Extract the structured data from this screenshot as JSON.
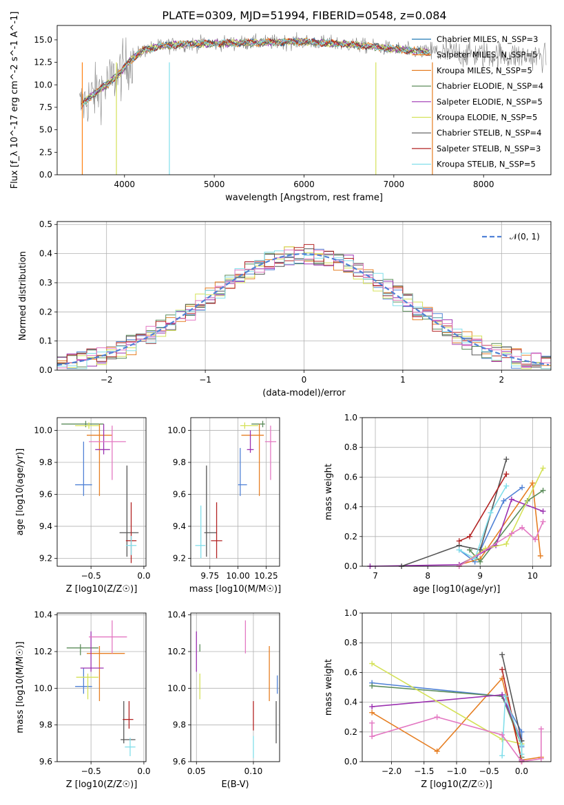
{
  "title": "PLATE=0309, MJD=51994, FIBERID=0548, z=0.084",
  "chart_data": [
    {
      "id": "spectrum",
      "type": "line",
      "xlabel": "wavelength [Angstrom, rest frame]",
      "ylabel": "Flux [f_λ 10^-17 erg cm^-2 s^-1 A^-1]",
      "xlim": [
        3250,
        8750
      ],
      "ylim": [
        0,
        16.6
      ],
      "xticks": [
        4000,
        5000,
        6000,
        7000,
        8000
      ],
      "yticks": [
        0.0,
        2.5,
        5.0,
        7.5,
        10.0,
        12.5,
        15.0
      ],
      "grid": false,
      "legend_placement": "right",
      "continuum_x": [
        3500,
        3600,
        3800,
        3950,
        4050,
        4200,
        4400,
        4600,
        5000,
        5500,
        6000,
        6500,
        7000,
        7400
      ],
      "continuum_y": [
        7.5,
        8.5,
        10.0,
        11.3,
        12.6,
        13.8,
        14.3,
        14.5,
        14.6,
        14.7,
        14.8,
        14.5,
        14.0,
        13.6
      ],
      "series": [
        {
          "name": "Chabrier MILES, N_SSP=3",
          "color": "#1f77b4"
        },
        {
          "name": "Salpeter MILES, N_SSP=5",
          "color": "#ff7f0e"
        },
        {
          "name": "Kroupa MILES, N_SSP=5",
          "color": "#e67e22"
        },
        {
          "name": "Chabrier ELODIE, N_SSP=4",
          "color": "#5b8c5a"
        },
        {
          "name": "Salpeter ELODIE, N_SSP=5",
          "color": "#9b30b0"
        },
        {
          "name": "Kroupa ELODIE, N_SSP=5",
          "color": "#d4e157"
        },
        {
          "name": "Chabrier STELIB, N_SSP=4",
          "color": "#555555"
        },
        {
          "name": "Salpeter STELIB, N_SSP=3",
          "color": "#b22222"
        },
        {
          "name": "Kroupa STELIB, N_SSP=5",
          "color": "#80deea"
        }
      ]
    },
    {
      "id": "residuals",
      "type": "step",
      "xlabel": "(data-model)/error",
      "ylabel": "Normed distribution",
      "xlim": [
        -2.5,
        2.5
      ],
      "ylim": [
        0,
        0.51
      ],
      "xticks": [
        -2,
        -1,
        0,
        1,
        2
      ],
      "xtick_labels": [
        "−2",
        "−1",
        "0",
        "1",
        "2"
      ],
      "yticks": [
        0.0,
        0.1,
        0.2,
        0.3,
        0.4,
        0.5
      ],
      "grid": true,
      "legend_placement": "top-right",
      "legend_label": "𝒩(0, 1)",
      "bin_width": 0.1,
      "series_colors": [
        "#4f81d6",
        "#e67e22",
        "#5b8c5a",
        "#9b30b0",
        "#d4e157",
        "#555555",
        "#b22222",
        "#80deea",
        "#e377c2"
      ]
    },
    {
      "id": "age_vs_Z",
      "type": "errorbar",
      "xlabel": "Z [log10(Z/Z☉)]",
      "ylabel": "age [log10(age/yr)]",
      "xlim": [
        -0.82,
        0.02
      ],
      "ylim": [
        9.15,
        10.08
      ],
      "xticks": [
        -0.5,
        0.0
      ],
      "xtick_labels": [
        "−0.5",
        "0.0"
      ],
      "yticks": [
        9.2,
        9.4,
        9.6,
        9.8,
        10.0
      ],
      "grid": true,
      "points": [
        {
          "x": -0.57,
          "y": 9.66,
          "xerr": [
            0.08,
            0.08
          ],
          "yerr": [
            0.07,
            0.27
          ],
          "color": "#4f81d6"
        },
        {
          "x": -0.55,
          "y": 10.04,
          "xerr": [
            0.23,
            0.17
          ],
          "yerr": [
            0.02,
            0.02
          ],
          "color": "#5b8c5a"
        },
        {
          "x": -0.42,
          "y": 9.97,
          "xerr": [
            0.12,
            0.12
          ],
          "yerr": [
            0.38,
            0.07
          ],
          "color": "#e67e22"
        },
        {
          "x": -0.38,
          "y": 9.88,
          "xerr": [
            0.08,
            0.06
          ],
          "yerr": [
            0.03,
            0.16
          ],
          "color": "#9b30b0"
        },
        {
          "x": -0.52,
          "y": 10.03,
          "xerr": [
            0.13,
            0.1
          ],
          "yerr": [
            0.02,
            0.02
          ],
          "color": "#d4e157"
        },
        {
          "x": -0.3,
          "y": 9.93,
          "xerr": [
            0.22,
            0.13
          ],
          "yerr": [
            0.24,
            0.1
          ],
          "color": "#e377c2"
        },
        {
          "x": -0.16,
          "y": 9.36,
          "xerr": [
            0.07,
            0.11
          ],
          "yerr": [
            0.15,
            0.42
          ],
          "color": "#555555"
        },
        {
          "x": -0.12,
          "y": 9.31,
          "xerr": [
            0.05,
            0.05
          ],
          "yerr": [
            0.14,
            0.24
          ],
          "color": "#b22222"
        },
        {
          "x": -0.12,
          "y": 9.28,
          "xerr": [
            0.05,
            0.05
          ],
          "yerr": [
            0.06,
            0.06
          ],
          "color": "#80deea"
        }
      ]
    },
    {
      "id": "age_vs_mass",
      "type": "errorbar",
      "xlabel": "mass [log10(M/M☉)]",
      "ylabel": "",
      "xlim": [
        9.58,
        10.37
      ],
      "ylim": [
        9.15,
        10.08
      ],
      "xticks": [
        9.75,
        10.0,
        10.25
      ],
      "xtick_labels": [
        "9.75",
        "10.00",
        "10.25"
      ],
      "yticks": [
        9.2,
        9.4,
        9.6,
        9.8,
        10.0
      ],
      "grid": true,
      "points": [
        {
          "x": 10.02,
          "y": 9.66,
          "xerr": [
            0.02,
            0.06
          ],
          "yerr": [
            0.07,
            0.23
          ],
          "color": "#4f81d6"
        },
        {
          "x": 10.22,
          "y": 10.04,
          "xerr": [
            0.1,
            0.02
          ],
          "yerr": [
            0.02,
            0.02
          ],
          "color": "#5b8c5a"
        },
        {
          "x": 10.19,
          "y": 9.97,
          "xerr": [
            0.16,
            0.04
          ],
          "yerr": [
            0.38,
            0.07
          ],
          "color": "#e67e22"
        },
        {
          "x": 10.11,
          "y": 9.88,
          "xerr": [
            0.03,
            0.03
          ],
          "yerr": [
            0.02,
            0.12
          ],
          "color": "#9b30b0"
        },
        {
          "x": 10.06,
          "y": 10.03,
          "xerr": [
            0.04,
            0.12
          ],
          "yerr": [
            0.02,
            0.02
          ],
          "color": "#d4e157"
        },
        {
          "x": 10.29,
          "y": 9.93,
          "xerr": [
            0.05,
            0.05
          ],
          "yerr": [
            0.24,
            0.1
          ],
          "color": "#e377c2"
        },
        {
          "x": 9.72,
          "y": 9.36,
          "xerr": [
            0.02,
            0.09
          ],
          "yerr": [
            0.15,
            0.42
          ],
          "color": "#555555"
        },
        {
          "x": 9.81,
          "y": 9.31,
          "xerr": [
            0.05,
            0.05
          ],
          "yerr": [
            0.11,
            0.24
          ],
          "color": "#b22222"
        },
        {
          "x": 9.67,
          "y": 9.28,
          "xerr": [
            0.05,
            0.04
          ],
          "yerr": [
            0.08,
            0.25
          ],
          "color": "#80deea"
        }
      ]
    },
    {
      "id": "weight_vs_age",
      "type": "line",
      "xlabel": "age [log10(age/yr)]",
      "ylabel": "mass weight",
      "xlim": [
        6.75,
        10.35
      ],
      "ylim": [
        0,
        1.0
      ],
      "xticks": [
        7,
        8,
        9,
        10
      ],
      "yticks": [
        0.0,
        0.2,
        0.4,
        0.6,
        0.8,
        1.0
      ],
      "grid": true,
      "series": [
        {
          "color": "#4f81d6",
          "x": [
            8.6,
            8.9,
            9.45,
            9.8
          ],
          "y": [
            0.11,
            0.03,
            0.44,
            0.53
          ]
        },
        {
          "color": "#e67e22",
          "x": [
            8.6,
            9.0,
            10.0,
            10.15
          ],
          "y": [
            0.01,
            0.05,
            0.56,
            0.07
          ]
        },
        {
          "color": "#5b8c5a",
          "x": [
            8.8,
            9.0,
            9.9,
            10.2
          ],
          "y": [
            0.11,
            0.03,
            0.44,
            0.51
          ]
        },
        {
          "color": "#9b30b0",
          "x": [
            6.9,
            8.6,
            9.3,
            9.6,
            10.2
          ],
          "y": [
            0.0,
            0.01,
            0.14,
            0.45,
            0.37
          ]
        },
        {
          "color": "#d4e157",
          "x": [
            8.6,
            9.1,
            9.5,
            10.2
          ],
          "y": [
            0.0,
            0.12,
            0.15,
            0.66
          ]
        },
        {
          "color": "#555555",
          "x": [
            7.5,
            8.6,
            9.0,
            9.5
          ],
          "y": [
            0.0,
            0.14,
            0.11,
            0.72
          ]
        },
        {
          "color": "#b22222",
          "x": [
            8.6,
            8.8,
            9.5
          ],
          "y": [
            0.17,
            0.2,
            0.62
          ]
        },
        {
          "color": "#80deea",
          "x": [
            8.6,
            8.9,
            9.2,
            9.5
          ],
          "y": [
            0.11,
            0.05,
            0.36,
            0.54
          ]
        },
        {
          "color": "#e377c2",
          "x": [
            8.6,
            9.6,
            9.8,
            10.05,
            10.2
          ],
          "y": [
            0.0,
            0.22,
            0.26,
            0.18,
            0.3
          ]
        }
      ]
    },
    {
      "id": "mass_vs_Z",
      "type": "errorbar",
      "xlabel": "Z [log10(Z/Z☉)]",
      "ylabel": "mass [log10(M/M☉)]",
      "xlim": [
        -0.82,
        0.02
      ],
      "ylim": [
        9.6,
        10.41
      ],
      "xticks": [
        -0.5,
        0.0
      ],
      "xtick_labels": [
        "−0.5",
        "0.0"
      ],
      "yticks": [
        9.6,
        9.8,
        10.0,
        10.2,
        10.4
      ],
      "grid": true,
      "points": [
        {
          "x": -0.57,
          "y": 10.01,
          "xerr": [
            0.08,
            0.08
          ],
          "yerr": [
            0.04,
            0.1
          ],
          "color": "#4f81d6"
        },
        {
          "x": -0.6,
          "y": 10.22,
          "xerr": [
            0.13,
            0.17
          ],
          "yerr": [
            0.04,
            0.02
          ],
          "color": "#5b8c5a"
        },
        {
          "x": -0.42,
          "y": 10.19,
          "xerr": [
            0.12,
            0.24
          ],
          "yerr": [
            0.26,
            0.04
          ],
          "color": "#e67e22"
        },
        {
          "x": -0.5,
          "y": 10.11,
          "xerr": [
            0.1,
            0.12
          ],
          "yerr": [
            0.02,
            0.2
          ],
          "color": "#9b30b0"
        },
        {
          "x": -0.53,
          "y": 10.06,
          "xerr": [
            0.11,
            0.1
          ],
          "yerr": [
            0.12,
            0.02
          ],
          "color": "#d4e157"
        },
        {
          "x": -0.3,
          "y": 10.28,
          "xerr": [
            0.22,
            0.14
          ],
          "yerr": [
            0.09,
            0.09
          ],
          "color": "#e377c2"
        },
        {
          "x": -0.19,
          "y": 9.72,
          "xerr": [
            0.03,
            0.11
          ],
          "yerr": [
            0.02,
            0.21
          ],
          "color": "#555555"
        },
        {
          "x": -0.14,
          "y": 9.83,
          "xerr": [
            0.06,
            0.04
          ],
          "yerr": [
            0.05,
            0.1
          ],
          "color": "#b22222"
        },
        {
          "x": -0.13,
          "y": 9.68,
          "xerr": [
            0.05,
            0.05
          ],
          "yerr": [
            0.05,
            0.05
          ],
          "color": "#80deea"
        }
      ]
    },
    {
      "id": "mass_vs_EBV",
      "type": "errorbar",
      "xlabel": "E(B-V)",
      "ylabel": "",
      "xlim": [
        0.045,
        0.123
      ],
      "ylim": [
        9.6,
        10.41
      ],
      "xticks": [
        0.05,
        0.1
      ],
      "xtick_labels": [
        "0.05",
        "0.10"
      ],
      "yticks": [
        9.6,
        9.8,
        10.0,
        10.2,
        10.4
      ],
      "grid": true,
      "points": [
        {
          "x": 0.121,
          "y": 10.01,
          "xerr": [
            0,
            0
          ],
          "yerr": [
            0.04,
            0.06
          ],
          "color": "#4f81d6"
        },
        {
          "x": 0.053,
          "y": 10.22,
          "xerr": [
            0,
            0
          ],
          "yerr": [
            0.02,
            0.02
          ],
          "color": "#5b8c5a"
        },
        {
          "x": 0.114,
          "y": 10.19,
          "xerr": [
            0,
            0
          ],
          "yerr": [
            0.26,
            0.04
          ],
          "color": "#e67e22"
        },
        {
          "x": 0.05,
          "y": 10.11,
          "xerr": [
            0,
            0
          ],
          "yerr": [
            0.02,
            0.2
          ],
          "color": "#9b30b0"
        },
        {
          "x": 0.053,
          "y": 10.06,
          "xerr": [
            0,
            0
          ],
          "yerr": [
            0.12,
            0.02
          ],
          "color": "#d4e157"
        },
        {
          "x": 0.093,
          "y": 10.28,
          "xerr": [
            0,
            0
          ],
          "yerr": [
            0.09,
            0.09
          ],
          "color": "#e377c2"
        },
        {
          "x": 0.12,
          "y": 9.72,
          "xerr": [
            0,
            0
          ],
          "yerr": [
            0.02,
            0.21
          ],
          "color": "#555555"
        },
        {
          "x": 0.1,
          "y": 9.83,
          "xerr": [
            0,
            0
          ],
          "yerr": [
            0.06,
            0.1
          ],
          "color": "#b22222"
        },
        {
          "x": 0.1,
          "y": 9.68,
          "xerr": [
            0,
            0
          ],
          "yerr": [
            0.06,
            0.06
          ],
          "color": "#80deea"
        }
      ]
    },
    {
      "id": "weight_vs_Z",
      "type": "line",
      "xlabel": "Z [log10(Z/Z☉)]",
      "ylabel": "mass weight",
      "xlim": [
        -2.45,
        0.45
      ],
      "ylim": [
        0,
        1.0
      ],
      "xticks": [
        -2.0,
        -1.5,
        -1.0,
        -0.5,
        0.0
      ],
      "xtick_labels": [
        "−2.0",
        "−1.5",
        "−1.0",
        "−0.5",
        "0.0"
      ],
      "yticks": [
        0.0,
        0.2,
        0.4,
        0.6,
        0.8,
        1.0
      ],
      "grid": true,
      "series": [
        {
          "color": "#4f81d6",
          "x": [
            -2.3,
            -0.3,
            0.0,
            0.0
          ],
          "y": [
            0.53,
            0.44,
            0.2,
            0.1
          ]
        },
        {
          "color": "#e67e22",
          "x": [
            -2.3,
            -1.3,
            -0.3,
            0.0,
            0.3
          ],
          "y": [
            0.33,
            0.07,
            0.56,
            0.01,
            0.03
          ]
        },
        {
          "color": "#5b8c5a",
          "x": [
            -2.3,
            -0.3,
            0.0,
            0.0
          ],
          "y": [
            0.51,
            0.44,
            0.11,
            0.03
          ]
        },
        {
          "color": "#9b30b0",
          "x": [
            -2.3,
            -0.3,
            0.0,
            0.0
          ],
          "y": [
            0.37,
            0.45,
            0.14,
            0.01
          ]
        },
        {
          "color": "#d4e157",
          "x": [
            -2.3,
            -0.3,
            0.0,
            0.0
          ],
          "y": [
            0.66,
            0.15,
            0.12,
            0.0
          ]
        },
        {
          "color": "#555555",
          "x": [
            -0.3,
            0.0,
            0.0
          ],
          "y": [
            0.72,
            0.14,
            0.11
          ]
        },
        {
          "color": "#b22222",
          "x": [
            -0.3,
            0.0
          ],
          "y": [
            0.62,
            0.0
          ]
        },
        {
          "color": "#80deea",
          "x": [
            -0.3,
            -0.25,
            0.0,
            0.0
          ],
          "y": [
            0.04,
            0.44,
            0.11,
            0.05
          ]
        },
        {
          "color": "#e377c2",
          "x": [
            -2.3,
            -2.3,
            -1.3,
            -0.3,
            0.0,
            0.3,
            0.3
          ],
          "y": [
            0.26,
            0.17,
            0.3,
            0.18,
            0.0,
            0.02,
            0.22
          ]
        }
      ]
    }
  ]
}
